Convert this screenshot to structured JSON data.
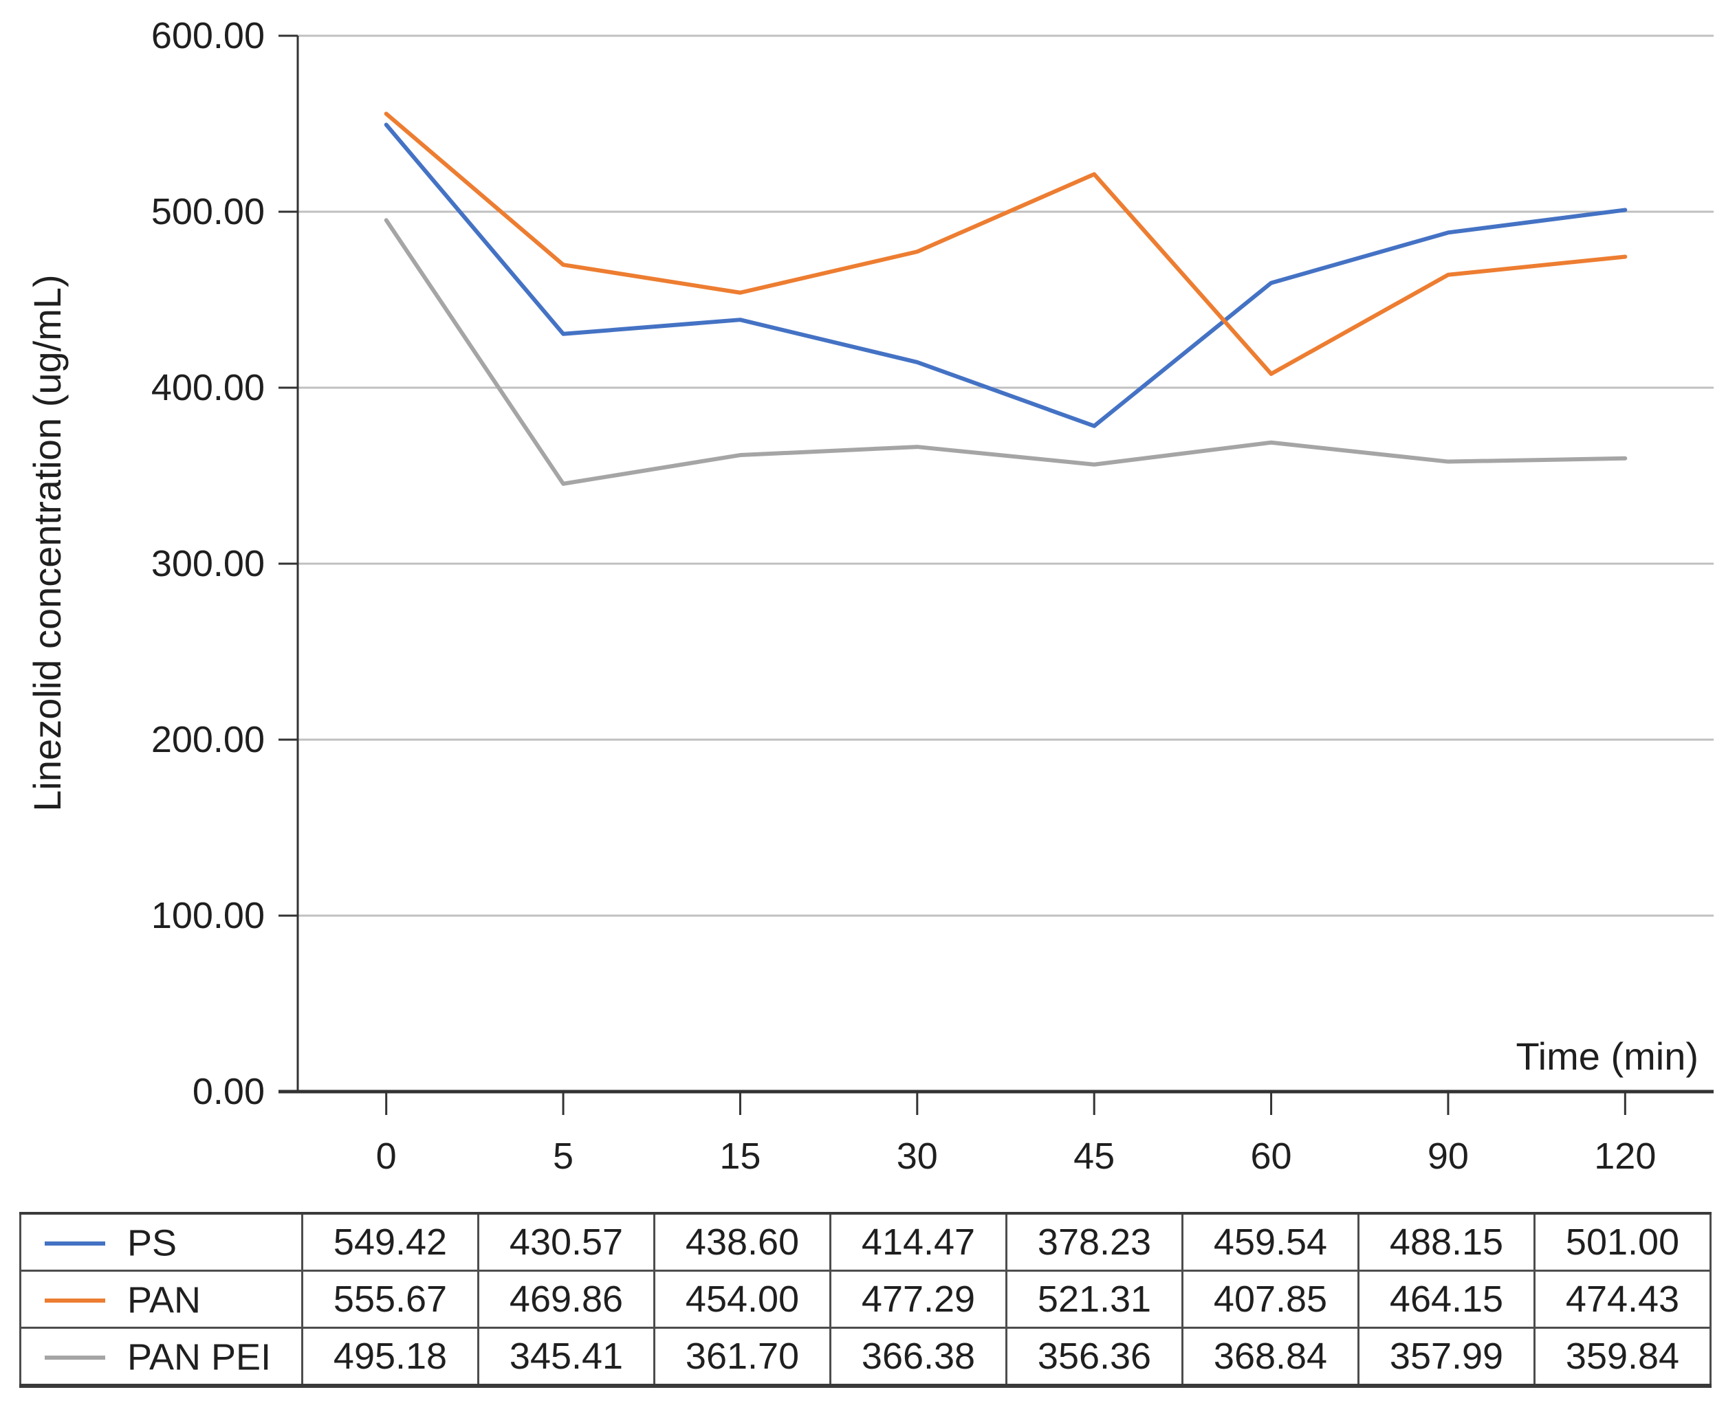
{
  "chart_data": {
    "type": "line",
    "title": "",
    "xlabel": "Time (min)",
    "ylabel": "Linezolid concentration (ug/mL)",
    "categories": [
      "0",
      "5",
      "15",
      "30",
      "45",
      "60",
      "90",
      "120"
    ],
    "ylim": [
      0,
      600
    ],
    "ytick_step": 100,
    "ytick_labels": [
      "0.00",
      "100.00",
      "200.00",
      "300.00",
      "400.00",
      "500.00",
      "600.00"
    ],
    "grid": true,
    "legend_position": "data-table-below-chart",
    "series": [
      {
        "name": "PS",
        "color": "#4472C4",
        "values": [
          549.42,
          430.57,
          438.6,
          414.47,
          378.23,
          459.54,
          488.15,
          501.0
        ]
      },
      {
        "name": "PAN",
        "color": "#ED7D31",
        "values": [
          555.67,
          469.86,
          454.0,
          477.29,
          521.31,
          407.85,
          464.15,
          474.43
        ]
      },
      {
        "name": "PAN PEI",
        "color": "#A5A5A5",
        "values": [
          495.18,
          345.41,
          361.7,
          366.38,
          356.36,
          368.84,
          357.99,
          359.84
        ]
      }
    ]
  },
  "colors": {
    "axis": "#333333",
    "grid": "#c0c0c0",
    "text": "#1f1f1f",
    "table_border": "#4d4d4d"
  }
}
